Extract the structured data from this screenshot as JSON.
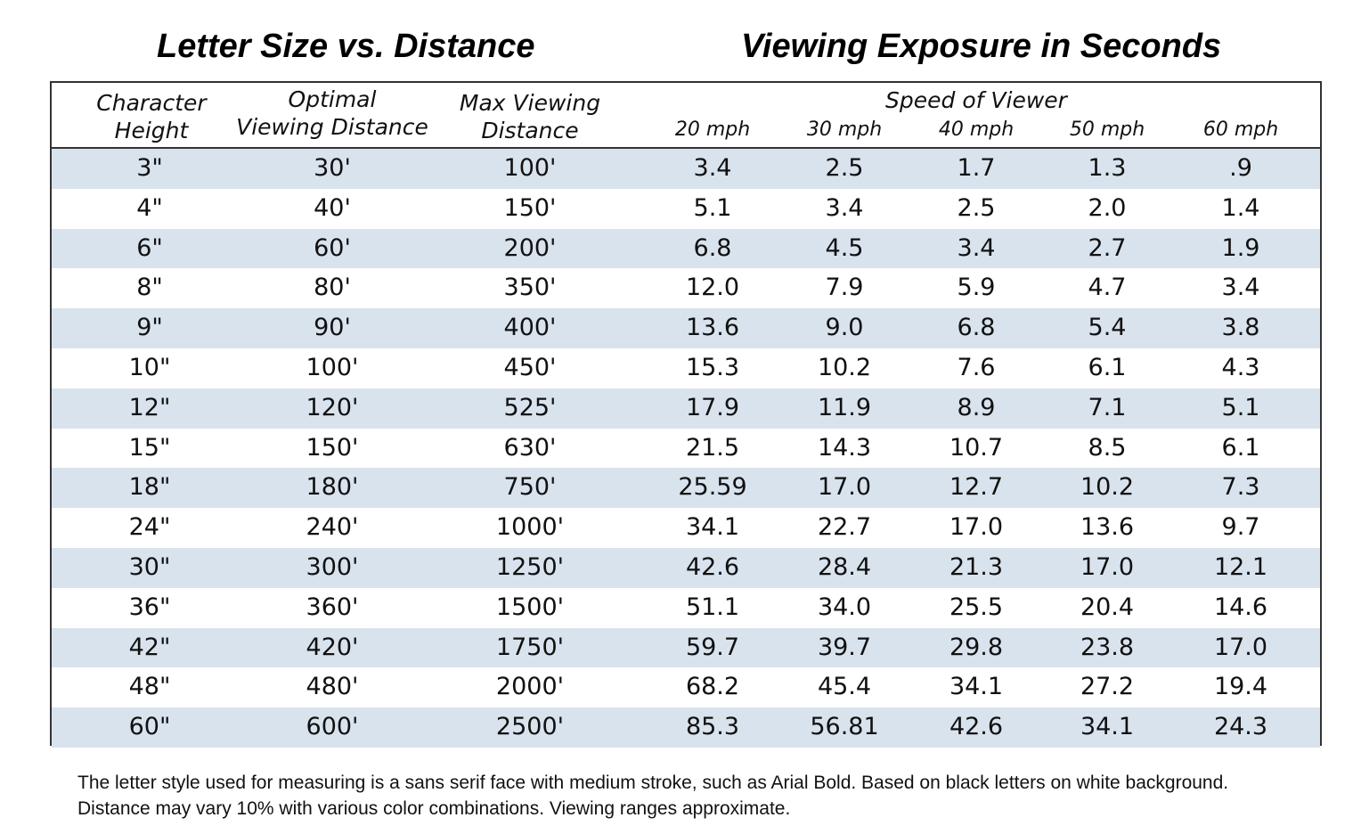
{
  "titles": {
    "left": "Letter Size vs. Distance",
    "right": "Viewing Exposure in Seconds"
  },
  "header": {
    "character_height": [
      "Character",
      "Height"
    ],
    "optimal_distance": [
      "Optimal",
      "Viewing Distance"
    ],
    "max_distance": [
      "Max Viewing",
      "Distance"
    ],
    "speed_of_viewer": "Speed of Viewer",
    "speeds": [
      "20 mph",
      "30 mph",
      "40 mph",
      "50 mph",
      "60 mph"
    ]
  },
  "rows": [
    [
      "3\"",
      "30'",
      "100'",
      "3.4",
      "2.5",
      "1.7",
      "1.3",
      ".9"
    ],
    [
      "4\"",
      "40'",
      "150'",
      "5.1",
      "3.4",
      "2.5",
      "2.0",
      "1.4"
    ],
    [
      "6\"",
      "60'",
      "200'",
      "6.8",
      "4.5",
      "3.4",
      "2.7",
      "1.9"
    ],
    [
      "8\"",
      "80'",
      "350'",
      "12.0",
      "7.9",
      "5.9",
      "4.7",
      "3.4"
    ],
    [
      "9\"",
      "90'",
      "400'",
      "13.6",
      "9.0",
      "6.8",
      "5.4",
      "3.8"
    ],
    [
      "10\"",
      "100'",
      "450'",
      "15.3",
      "10.2",
      "7.6",
      "6.1",
      "4.3"
    ],
    [
      "12\"",
      "120'",
      "525'",
      "17.9",
      "11.9",
      "8.9",
      "7.1",
      "5.1"
    ],
    [
      "15\"",
      "150'",
      "630'",
      "21.5",
      "14.3",
      "10.7",
      "8.5",
      "6.1"
    ],
    [
      "18\"",
      "180'",
      "750'",
      "25.59",
      "17.0",
      "12.7",
      "10.2",
      "7.3"
    ],
    [
      "24\"",
      "240'",
      "1000'",
      "34.1",
      "22.7",
      "17.0",
      "13.6",
      "9.7"
    ],
    [
      "30\"",
      "300'",
      "1250'",
      "42.6",
      "28.4",
      "21.3",
      "17.0",
      "12.1"
    ],
    [
      "36\"",
      "360'",
      "1500'",
      "51.1",
      "34.0",
      "25.5",
      "20.4",
      "14.6"
    ],
    [
      "42\"",
      "420'",
      "1750'",
      "59.7",
      "39.7",
      "29.8",
      "23.8",
      "17.0"
    ],
    [
      "48\"",
      "480'",
      "2000'",
      "68.2",
      "45.4",
      "34.1",
      "27.2",
      "19.4"
    ],
    [
      "60\"",
      "600'",
      "2500'",
      "85.3",
      "56.81",
      "42.6",
      "34.1",
      "24.3"
    ]
  ],
  "footnote": {
    "line1": "The letter style used for measuring is a sans serif face with medium stroke, such as Arial Bold. Based on black letters on white background.",
    "line2": "Distance may vary 10% with various color combinations. Viewing ranges approximate."
  },
  "colors": {
    "row_shade": "#d9e3ee",
    "border": "#333333"
  }
}
